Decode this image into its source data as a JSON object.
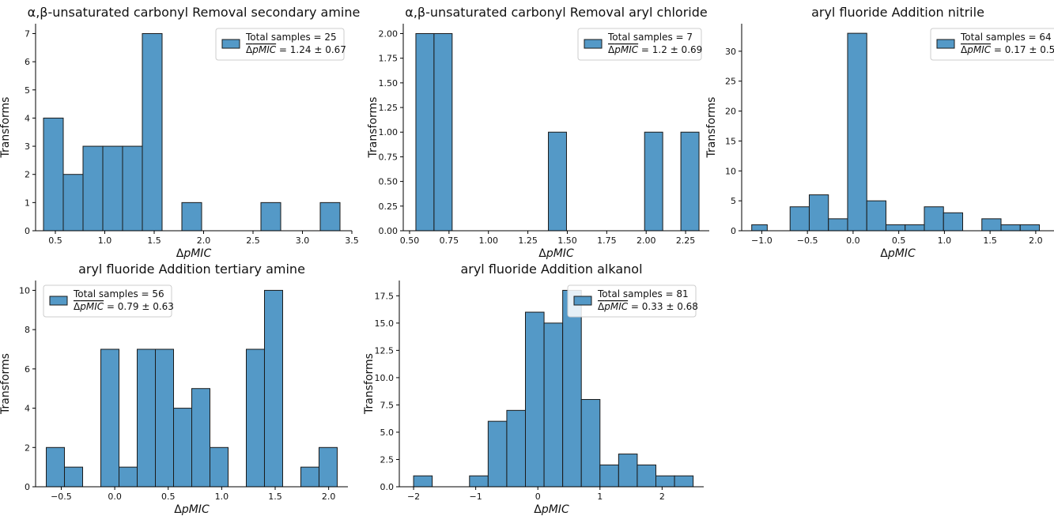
{
  "style": {
    "bar_fill": "#5499c7",
    "bar_stroke": "#1a1a1a",
    "legend_border": "#cccccc"
  },
  "chart_data": [
    {
      "type": "bar",
      "title": "α,β-unsaturated carbonyl Removal secondary amine",
      "xlabel": "ΔpMIC",
      "ylabel": "Transforms",
      "xlim": [
        0.3,
        3.5
      ],
      "ylim": [
        0,
        7.35
      ],
      "xticks": [
        0.5,
        1.0,
        1.5,
        2.0,
        2.5,
        3.0,
        3.5
      ],
      "xtick_labels": [
        "0.5",
        "1.0",
        "1.5",
        "2.0",
        "2.5",
        "3.0",
        "3.5"
      ],
      "yticks": [
        0,
        1,
        2,
        3,
        4,
        5,
        6,
        7
      ],
      "ytick_labels": [
        "0",
        "1",
        "2",
        "3",
        "4",
        "5",
        "6",
        "7"
      ],
      "bins": [
        {
          "x0": 0.38,
          "x1": 0.58,
          "count": 4
        },
        {
          "x0": 0.58,
          "x1": 0.78,
          "count": 2
        },
        {
          "x0": 0.78,
          "x1": 0.98,
          "count": 3
        },
        {
          "x0": 0.98,
          "x1": 1.18,
          "count": 3
        },
        {
          "x0": 1.18,
          "x1": 1.38,
          "count": 3
        },
        {
          "x0": 1.38,
          "x1": 1.58,
          "count": 7
        },
        {
          "x0": 1.78,
          "x1": 1.98,
          "count": 1
        },
        {
          "x0": 2.58,
          "x1": 2.78,
          "count": 1
        },
        {
          "x0": 3.18,
          "x1": 3.38,
          "count": 1
        }
      ],
      "legend": {
        "line1": "Total samples = 25",
        "line2": "ΔpMIC = 1.24 ± 0.67",
        "placement": "top-right"
      }
    },
    {
      "type": "bar",
      "title": "α,β-unsaturated carbonyl Removal aryl chloride",
      "xlabel": "ΔpMIC",
      "ylabel": "Transforms",
      "xlim": [
        0.46,
        2.4
      ],
      "ylim": [
        0,
        2.1
      ],
      "xticks": [
        0.5,
        0.75,
        1.0,
        1.25,
        1.5,
        1.75,
        2.0,
        2.25
      ],
      "xtick_labels": [
        "0.50",
        "0.75",
        "1.00",
        "1.25",
        "1.50",
        "1.75",
        "2.00",
        "2.25"
      ],
      "yticks": [
        0,
        0.25,
        0.5,
        0.75,
        1.0,
        1.25,
        1.5,
        1.75,
        2.0
      ],
      "ytick_labels": [
        "0.00",
        "0.25",
        "0.50",
        "0.75",
        "1.00",
        "1.25",
        "1.50",
        "1.75",
        "2.00"
      ],
      "bins": [
        {
          "x0": 0.54,
          "x1": 0.655,
          "count": 2
        },
        {
          "x0": 0.655,
          "x1": 0.77,
          "count": 2
        },
        {
          "x0": 1.38,
          "x1": 1.495,
          "count": 1
        },
        {
          "x0": 1.99,
          "x1": 2.105,
          "count": 1
        },
        {
          "x0": 2.22,
          "x1": 2.335,
          "count": 1
        }
      ],
      "legend": {
        "line1": "Total samples = 7",
        "line2": "ΔpMIC = 1.2 ± 0.69",
        "placement": "top-right"
      }
    },
    {
      "type": "bar",
      "title": "aryl fluoride Addition nitrile",
      "xlabel": "ΔpMIC",
      "ylabel": "Transforms",
      "xlim": [
        -1.22,
        2.2
      ],
      "ylim": [
        0,
        34.6
      ],
      "xticks": [
        -1.0,
        -0.5,
        0.0,
        0.5,
        1.0,
        1.5,
        2.0
      ],
      "xtick_labels": [
        "−1.0",
        "−0.5",
        "0.0",
        "0.5",
        "1.0",
        "1.5",
        "2.0"
      ],
      "yticks": [
        0,
        5,
        10,
        15,
        20,
        25,
        30
      ],
      "ytick_labels": [
        "0",
        "5",
        "10",
        "15",
        "20",
        "25",
        "30"
      ],
      "bins": [
        {
          "x0": -1.11,
          "x1": -0.94,
          "count": 1
        },
        {
          "x0": -0.69,
          "x1": -0.48,
          "count": 4
        },
        {
          "x0": -0.48,
          "x1": -0.27,
          "count": 6
        },
        {
          "x0": -0.27,
          "x1": -0.06,
          "count": 2
        },
        {
          "x0": -0.06,
          "x1": 0.15,
          "count": 33
        },
        {
          "x0": 0.15,
          "x1": 0.36,
          "count": 5
        },
        {
          "x0": 0.36,
          "x1": 0.57,
          "count": 1
        },
        {
          "x0": 0.57,
          "x1": 0.78,
          "count": 1
        },
        {
          "x0": 0.78,
          "x1": 0.99,
          "count": 4
        },
        {
          "x0": 0.99,
          "x1": 1.2,
          "count": 3
        },
        {
          "x0": 1.41,
          "x1": 1.62,
          "count": 2
        },
        {
          "x0": 1.62,
          "x1": 1.83,
          "count": 1
        },
        {
          "x0": 1.83,
          "x1": 2.04,
          "count": 1
        }
      ],
      "legend": {
        "line1": "Total samples = 64",
        "line2": "ΔpMIC = 0.17 ± 0.59",
        "placement": "top-right"
      }
    },
    {
      "type": "bar",
      "title": "aryl fluoride Addition tertiary amine",
      "xlabel": "ΔpMIC",
      "ylabel": "Transforms",
      "xlim": [
        -0.74,
        2.18
      ],
      "ylim": [
        0,
        10.5
      ],
      "xticks": [
        -0.5,
        0.0,
        0.5,
        1.0,
        1.5,
        2.0
      ],
      "xtick_labels": [
        "−0.5",
        "0.0",
        "0.5",
        "1.0",
        "1.5",
        "2.0"
      ],
      "yticks": [
        0,
        2,
        4,
        6,
        8,
        10
      ],
      "ytick_labels": [
        "0",
        "2",
        "4",
        "6",
        "8",
        "10"
      ],
      "bins": [
        {
          "x0": -0.64,
          "x1": -0.47,
          "count": 2
        },
        {
          "x0": -0.47,
          "x1": -0.3,
          "count": 1
        },
        {
          "x0": -0.13,
          "x1": 0.04,
          "count": 7
        },
        {
          "x0": 0.04,
          "x1": 0.21,
          "count": 1
        },
        {
          "x0": 0.21,
          "x1": 0.38,
          "count": 7
        },
        {
          "x0": 0.38,
          "x1": 0.55,
          "count": 7
        },
        {
          "x0": 0.55,
          "x1": 0.72,
          "count": 4
        },
        {
          "x0": 0.72,
          "x1": 0.89,
          "count": 5
        },
        {
          "x0": 0.89,
          "x1": 1.06,
          "count": 2
        },
        {
          "x0": 1.23,
          "x1": 1.4,
          "count": 7
        },
        {
          "x0": 1.4,
          "x1": 1.57,
          "count": 10
        },
        {
          "x0": 1.74,
          "x1": 1.91,
          "count": 1
        },
        {
          "x0": 1.91,
          "x1": 2.08,
          "count": 2
        }
      ],
      "legend": {
        "line1": "Total samples = 56",
        "line2": "ΔpMIC = 0.79 ± 0.63",
        "placement": "top-left"
      }
    },
    {
      "type": "bar",
      "title": "aryl fluoride Addition alkanol",
      "xlabel": "ΔpMIC",
      "ylabel": "Transforms",
      "xlim": [
        -2.23,
        2.67
      ],
      "ylim": [
        0,
        18.9
      ],
      "xticks": [
        -2,
        -1,
        0,
        1,
        2
      ],
      "xtick_labels": [
        "−2",
        "−1",
        "0",
        "1",
        "2"
      ],
      "yticks": [
        0,
        2.5,
        5.0,
        7.5,
        10.0,
        12.5,
        15.0,
        17.5
      ],
      "ytick_labels": [
        "0.0",
        "2.5",
        "5.0",
        "7.5",
        "10.0",
        "12.5",
        "15.0",
        "17.5"
      ],
      "bins": [
        {
          "x0": -2.0,
          "x1": -1.7,
          "count": 1
        },
        {
          "x0": -1.1,
          "x1": -0.8,
          "count": 1
        },
        {
          "x0": -0.8,
          "x1": -0.5,
          "count": 6
        },
        {
          "x0": -0.5,
          "x1": -0.2,
          "count": 7
        },
        {
          "x0": -0.2,
          "x1": 0.1,
          "count": 16
        },
        {
          "x0": 0.1,
          "x1": 0.4,
          "count": 15
        },
        {
          "x0": 0.4,
          "x1": 0.7,
          "count": 18
        },
        {
          "x0": 0.7,
          "x1": 1.0,
          "count": 8
        },
        {
          "x0": 1.0,
          "x1": 1.3,
          "count": 2
        },
        {
          "x0": 1.3,
          "x1": 1.6,
          "count": 3
        },
        {
          "x0": 1.6,
          "x1": 1.9,
          "count": 2
        },
        {
          "x0": 1.9,
          "x1": 2.2,
          "count": 1
        },
        {
          "x0": 2.2,
          "x1": 2.5,
          "count": 1
        }
      ],
      "legend": {
        "line1": "Total samples = 81",
        "line2": "ΔpMIC = 0.33 ± 0.68",
        "placement": "top-right"
      }
    }
  ]
}
